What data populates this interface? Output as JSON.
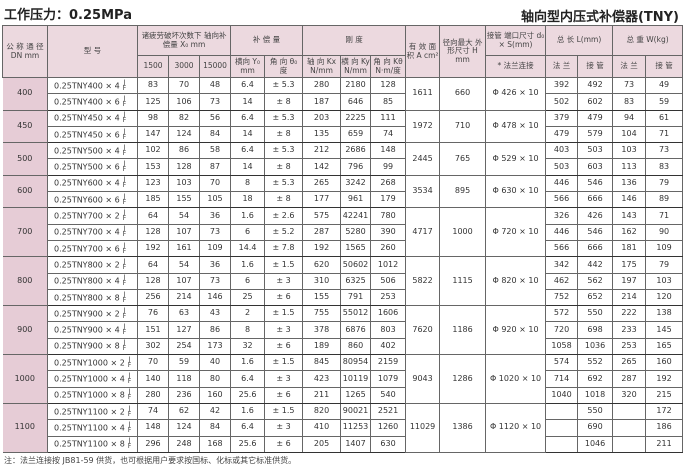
{
  "title_left": "工作压力：0.25MPa",
  "title_right": "轴向型内压式补偿器(TNY)",
  "headers": {
    "dn": "公 称 通 径 DN mm",
    "model": "型 号",
    "fatigue": "诸疲劳破坏次数下 轴向补偿量 X₀ mm",
    "f1500": "1500",
    "f3000": "3000",
    "f15000": "15000",
    "comp": "补 偿 量",
    "y0": "横向 Y₀ mm",
    "theta": "角 向 θ₀ 度",
    "stiff": "刚 度",
    "kx": "轴 向 Kx N/mm",
    "ky": "横 向 Ky N/mm",
    "kt": "角 向 Kθ N·m/度",
    "area": "有 效 面 积 A cm²",
    "h": "径向最大 外形尺寸 H mm",
    "pipe": "接管 端口尺寸 d₀ × S(mm)",
    "flange_conn": "* 法兰连接",
    "length": "总 长 L(mm)",
    "weight": "总 重 W(kg)",
    "flange": "法 兰",
    "pipe_end": "接 管"
  },
  "jf": [
    "J",
    "F"
  ],
  "groups": [
    {
      "dn": "400",
      "A": "1611",
      "H": "660",
      "d0": "Φ 426 × 10",
      "rows": [
        [
          "0.25TNY400 × 4",
          "83",
          "70",
          "48",
          "6.4",
          "± 5.3",
          "280",
          "2180",
          "128",
          "392",
          "492",
          "73",
          "49"
        ],
        [
          "0.25TNY400 × 6",
          "125",
          "106",
          "73",
          "14",
          "± 8",
          "187",
          "646",
          "85",
          "502",
          "602",
          "83",
          "59"
        ]
      ]
    },
    {
      "dn": "450",
      "A": "1972",
      "H": "710",
      "d0": "Φ 478 × 10",
      "rows": [
        [
          "0.25TNY450 × 4",
          "98",
          "82",
          "56",
          "6.4",
          "± 5.3",
          "203",
          "2225",
          "111",
          "379",
          "479",
          "94",
          "61"
        ],
        [
          "0.25TNY450 × 6",
          "147",
          "124",
          "84",
          "14",
          "± 8",
          "135",
          "659",
          "74",
          "479",
          "579",
          "104",
          "71"
        ]
      ]
    },
    {
      "dn": "500",
      "A": "2445",
      "H": "765",
      "d0": "Φ 529 × 10",
      "rows": [
        [
          "0.25TNY500 × 4",
          "102",
          "86",
          "58",
          "6.4",
          "± 5.3",
          "212",
          "2686",
          "148",
          "403",
          "503",
          "103",
          "73"
        ],
        [
          "0.25TNY500 × 6",
          "153",
          "128",
          "87",
          "14",
          "± 8",
          "142",
          "796",
          "99",
          "503",
          "603",
          "113",
          "83"
        ]
      ]
    },
    {
      "dn": "600",
      "A": "3534",
      "H": "895",
      "d0": "Φ 630 × 10",
      "rows": [
        [
          "0.25TNY600 × 4",
          "123",
          "103",
          "70",
          "8",
          "± 5.3",
          "265",
          "3242",
          "268",
          "446",
          "546",
          "136",
          "79"
        ],
        [
          "0.25TNY600 × 6",
          "185",
          "155",
          "105",
          "18",
          "± 8",
          "177",
          "961",
          "179",
          "566",
          "666",
          "146",
          "89"
        ]
      ]
    },
    {
      "dn": "700",
      "A": "4717",
      "H": "1000",
      "d0": "Φ 720 × 10",
      "rows": [
        [
          "0.25TNY700 × 2",
          "64",
          "54",
          "36",
          "1.6",
          "± 2.6",
          "575",
          "42241",
          "780",
          "326",
          "426",
          "143",
          "71"
        ],
        [
          "0.25TNY700 × 4",
          "128",
          "107",
          "73",
          "6",
          "± 5.2",
          "287",
          "5280",
          "390",
          "446",
          "546",
          "162",
          "90"
        ],
        [
          "0.25TNY700 × 6",
          "192",
          "161",
          "109",
          "14.4",
          "± 7.8",
          "192",
          "1565",
          "260",
          "566",
          "666",
          "181",
          "109"
        ]
      ]
    },
    {
      "dn": "800",
      "A": "5822",
      "H": "1115",
      "d0": "Φ 820 × 10",
      "rows": [
        [
          "0.25TNY800 × 2",
          "64",
          "54",
          "36",
          "1.6",
          "± 1.5",
          "620",
          "50602",
          "1012",
          "342",
          "442",
          "175",
          "79"
        ],
        [
          "0.25TNY800 × 4",
          "128",
          "107",
          "73",
          "6",
          "± 3",
          "310",
          "6325",
          "506",
          "462",
          "562",
          "197",
          "103"
        ],
        [
          "0.25TNY800 × 8",
          "256",
          "214",
          "146",
          "25",
          "± 6",
          "155",
          "791",
          "253",
          "752",
          "652",
          "214",
          "120"
        ]
      ]
    },
    {
      "dn": "900",
      "A": "7620",
      "H": "1186",
      "d0": "Φ 920 × 10",
      "rows": [
        [
          "0.25TNY900 × 2",
          "76",
          "63",
          "43",
          "2",
          "± 1.5",
          "755",
          "55012",
          "1606",
          "572",
          "550",
          "222",
          "138"
        ],
        [
          "0.25TNY900 × 4",
          "151",
          "127",
          "86",
          "8",
          "± 3",
          "378",
          "6876",
          "803",
          "720",
          "698",
          "233",
          "145"
        ],
        [
          "0.25TNY900 × 8",
          "302",
          "254",
          "173",
          "32",
          "± 6",
          "189",
          "860",
          "402",
          "1058",
          "1036",
          "253",
          "165"
        ]
      ]
    },
    {
      "dn": "1000",
      "A": "9043",
      "H": "1286",
      "d0": "Φ 1020 × 10",
      "rows": [
        [
          "0.25TNY1000 × 2",
          "70",
          "59",
          "40",
          "1.6",
          "± 1.5",
          "845",
          "80954",
          "2159",
          "574",
          "552",
          "265",
          "160"
        ],
        [
          "0.25TNY1000 × 4",
          "140",
          "118",
          "80",
          "6.4",
          "± 3",
          "423",
          "10119",
          "1079",
          "714",
          "692",
          "287",
          "192"
        ],
        [
          "0.25TNY1000 × 8",
          "280",
          "236",
          "160",
          "25.6",
          "± 6",
          "211",
          "1265",
          "540",
          "1040",
          "1018",
          "320",
          "215"
        ]
      ]
    },
    {
      "dn": "1100",
      "A": "11029",
      "H": "1386",
      "d0": "Φ 1120 × 10",
      "rows": [
        [
          "0.25TNY1100 × 2",
          "74",
          "62",
          "42",
          "1.6",
          "± 1.5",
          "820",
          "90021",
          "2521",
          "",
          "550",
          "",
          "172"
        ],
        [
          "0.25TNY1100 × 4",
          "148",
          "124",
          "84",
          "6.4",
          "± 3",
          "410",
          "11253",
          "1260",
          "",
          "690",
          "",
          "186"
        ],
        [
          "0.25TNY1100 × 8",
          "296",
          "248",
          "168",
          "25.6",
          "± 6",
          "205",
          "1407",
          "630",
          "",
          "1046",
          "",
          "211"
        ]
      ]
    }
  ],
  "note": "注：法兰连接按 JB81-59 供货，也可根据用户要求按国标、化标或其它标准供货。"
}
